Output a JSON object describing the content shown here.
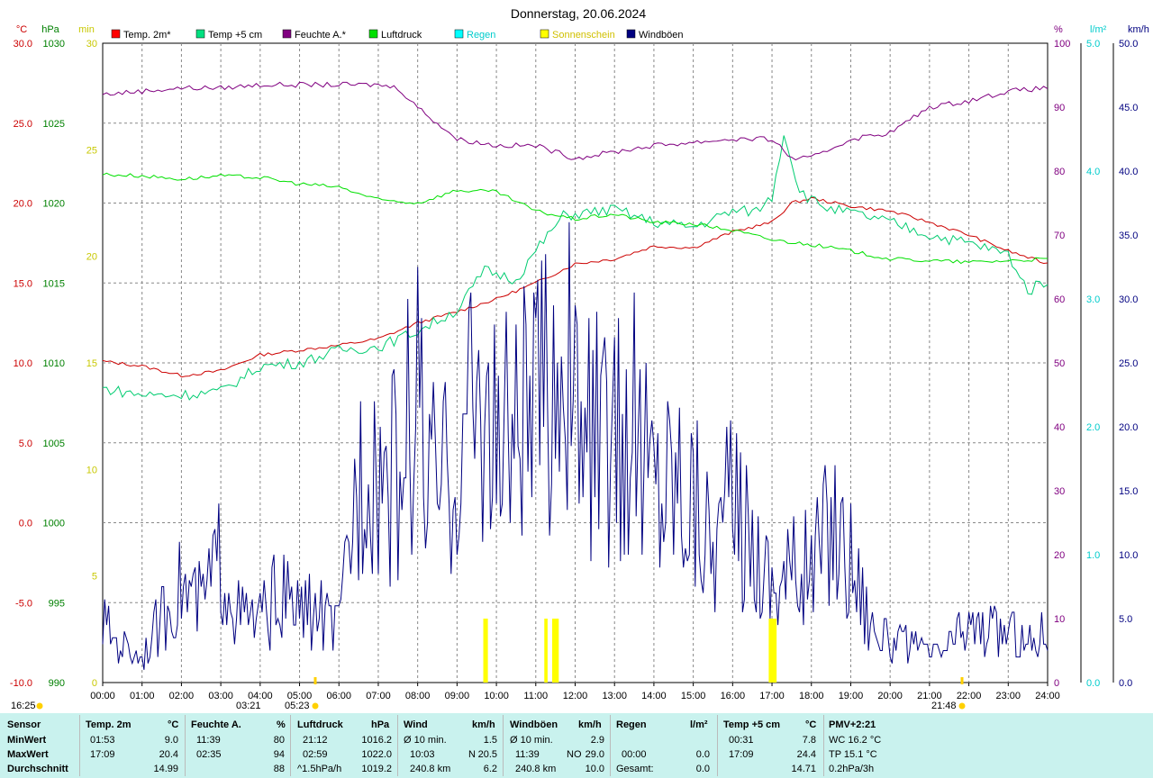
{
  "title": "Donnerstag, 20.06.2024",
  "chart_data": {
    "type": "line",
    "axes": {
      "temp": {
        "unit": "°C",
        "color": "#cc0000",
        "range": [
          -10,
          30
        ],
        "ticks": [
          "30.0",
          "25.0",
          "20.0",
          "15.0",
          "10.0",
          "5.0",
          "0.0",
          "-5.0",
          "-10.0"
        ]
      },
      "pressure": {
        "unit": "hPa",
        "color": "#008000",
        "range": [
          990,
          1030
        ],
        "ticks": [
          "1030",
          "1025",
          "1020",
          "1015",
          "1010",
          "1005",
          "1000",
          "995",
          "990"
        ]
      },
      "sunshine": {
        "unit": "min",
        "color": "#e0e000",
        "range": [
          0,
          30
        ],
        "ticks": [
          "30",
          "25",
          "20",
          "15",
          "10",
          "5",
          "0"
        ]
      },
      "humidity": {
        "unit": "%",
        "color": "#800080",
        "range": [
          0,
          100
        ],
        "ticks": [
          "100",
          "90",
          "80",
          "70",
          "60",
          "50",
          "40",
          "30",
          "20",
          "10",
          "0"
        ]
      },
      "rain": {
        "unit": "l/m²",
        "color": "#00e0e0",
        "range": [
          0,
          5
        ],
        "ticks": [
          "5.0",
          "4.0",
          "3.0",
          "2.0",
          "1.0",
          "0.0"
        ]
      },
      "wind": {
        "unit": "km/h",
        "color": "#000080",
        "range": [
          0,
          50
        ],
        "ticks": [
          "50.0",
          "45.0",
          "40.0",
          "35.0",
          "30.0",
          "25.0",
          "20.0",
          "15.0",
          "10.0",
          "5.0",
          "0.0"
        ]
      }
    },
    "x_ticks": [
      "00:00",
      "01:00",
      "02:00",
      "03:00",
      "04:00",
      "05:00",
      "06:00",
      "07:00",
      "08:00",
      "09:00",
      "10:00",
      "11:00",
      "12:00",
      "13:00",
      "14:00",
      "15:00",
      "16:00",
      "17:00",
      "18:00",
      "19:00",
      "20:00",
      "21:00",
      "22:00",
      "23:00",
      "24:00"
    ],
    "legend": [
      {
        "label": "Temp. 2m*",
        "color": "#ff0000"
      },
      {
        "label": "Temp +5 cm",
        "color": "#00e080"
      },
      {
        "label": "Feuchte A.*",
        "color": "#800080"
      },
      {
        "label": "Luftdruck",
        "color": "#00e000"
      },
      {
        "label": "Regen",
        "color": "#00ffff"
      },
      {
        "label": "Sonnenschein",
        "color": "#ffff00"
      },
      {
        "label": "Windböen",
        "color": "#000080"
      }
    ],
    "series": [
      {
        "name": "Temp. 2m*",
        "axis": "temp",
        "color": "#cc0000",
        "x": [
          0,
          1,
          2,
          3,
          4,
          5,
          6,
          7,
          8,
          9,
          10,
          11,
          12,
          13,
          14,
          15,
          16,
          17,
          17.5,
          18,
          19,
          20,
          21,
          22,
          23,
          24
        ],
        "values": [
          10.1,
          9.8,
          9.2,
          9.5,
          10.5,
          10.8,
          11.1,
          11.5,
          12.5,
          13.2,
          14.0,
          15.0,
          16.2,
          16.5,
          17.3,
          17.2,
          18.2,
          18.8,
          20.0,
          20.3,
          19.8,
          19.5,
          18.8,
          18.0,
          17.0,
          16.2
        ]
      },
      {
        "name": "Temp +5 cm",
        "axis": "temp",
        "color": "#00cc70",
        "x": [
          0,
          0.5,
          1,
          2,
          3,
          4,
          5,
          6,
          7,
          8,
          9,
          9.7,
          10.5,
          11,
          11.7,
          12.3,
          13,
          14,
          15,
          16,
          16.6,
          17,
          17.3,
          17.7,
          18,
          18.5,
          19,
          20,
          21,
          22,
          23,
          23.5,
          24
        ],
        "values": [
          8.4,
          8.2,
          8.0,
          8.0,
          8.2,
          9.8,
          10.0,
          10.8,
          11.0,
          12.0,
          13.3,
          15.8,
          15.2,
          17.0,
          19.2,
          19.4,
          19.6,
          18.8,
          18.5,
          19.5,
          19.5,
          20.4,
          24.4,
          20.8,
          20.2,
          19.6,
          19.4,
          18.8,
          18.0,
          17.5,
          16.8,
          14.5,
          15.2
        ]
      },
      {
        "name": "Feuchte A.*",
        "axis": "humidity",
        "color": "#800080",
        "x": [
          0,
          1,
          2,
          3,
          4,
          5,
          6,
          7,
          7.5,
          8,
          9,
          10,
          11,
          12,
          12.5,
          13,
          14,
          15,
          16,
          17,
          17.5,
          18,
          19,
          20,
          21,
          22,
          23,
          24
        ],
        "values": [
          92,
          92.5,
          93,
          93,
          93.5,
          93.5,
          93.5,
          93.5,
          93,
          90,
          85,
          84,
          84,
          82,
          82.5,
          83,
          84,
          84.5,
          85,
          85,
          82,
          82,
          85,
          86,
          90,
          91,
          92.5,
          93
        ]
      },
      {
        "name": "Luftdruck",
        "axis": "pressure",
        "color": "#00e000",
        "x": [
          0,
          1,
          2,
          3,
          4,
          5,
          6,
          7,
          8,
          9,
          10,
          11,
          12,
          13,
          14,
          15,
          16,
          17,
          18,
          19,
          20,
          21,
          22,
          23,
          24
        ],
        "values": [
          1021.8,
          1021.7,
          1021.5,
          1021.7,
          1021.6,
          1021.2,
          1021.0,
          1020.2,
          1020.0,
          1020.8,
          1020.7,
          1019.5,
          1019.0,
          1019.3,
          1018.8,
          1018.7,
          1018.3,
          1017.7,
          1017.4,
          1017.0,
          1016.5,
          1016.4,
          1016.3,
          1016.4,
          1016.5
        ]
      },
      {
        "name": "Windböen",
        "axis": "wind",
        "color": "#000080",
        "x": [
          0,
          0.5,
          1,
          1.5,
          2,
          2.5,
          3,
          3.5,
          4,
          4.5,
          5,
          5.5,
          6,
          6.3,
          6.7,
          7,
          7.5,
          8,
          8.2,
          8.5,
          9,
          9.3,
          9.7,
          10,
          10.5,
          11,
          11.5,
          11.7,
          12,
          12.5,
          13,
          13.5,
          14,
          14.5,
          15,
          15.5,
          16,
          16.5,
          17,
          17.5,
          18,
          18.5,
          19,
          19.5,
          20,
          20.5,
          21,
          21.5,
          22,
          22.5,
          23,
          23.5,
          24
        ],
        "values": [
          4.5,
          3,
          2,
          5,
          7.5,
          6,
          10,
          5,
          5,
          7,
          5.5,
          5.5,
          4,
          12,
          20,
          17,
          16,
          23,
          16,
          15,
          17,
          21,
          22,
          18,
          20,
          21,
          24,
          28,
          20,
          19,
          18,
          20,
          16,
          17,
          15,
          11,
          14,
          11,
          8,
          9,
          9,
          13,
          10,
          5,
          3,
          3,
          2,
          3,
          4.5,
          4,
          4,
          3,
          4.5
        ]
      }
    ],
    "sunshine_bars": [
      {
        "start": "09:40",
        "end": "09:47",
        "minutes": 3
      },
      {
        "start": "11:13",
        "end": "11:18",
        "minutes": 3
      },
      {
        "start": "11:25",
        "end": "11:35",
        "minutes": 3
      },
      {
        "start": "16:55",
        "end": "17:07",
        "minutes": 3
      }
    ],
    "markers": {
      "sunrise_left": "16:25",
      "m1": "03:21",
      "m2": "05:23",
      "m3": "21:48"
    }
  },
  "footer": {
    "sensor": {
      "header": "Sensor",
      "rows": [
        "MinWert",
        "MaxWert",
        "Durchschnitt"
      ]
    },
    "temp2m": {
      "header": "Temp. 2m",
      "unit": "°C",
      "min_time": "01:53",
      "min": "9.0",
      "max_time": "17:09",
      "max": "20.4",
      "avg": "14.99"
    },
    "feuchte": {
      "header": "Feuchte A.",
      "unit": "%",
      "min_time": "11:39",
      "min": "80",
      "max_time": "02:35",
      "max": "94",
      "avg": "88"
    },
    "luftdruck": {
      "header": "Luftdruck",
      "unit": "hPa",
      "min_time": "21:12",
      "min": "1016.2",
      "max_time": "02:59",
      "max": "1022.0",
      "avg_label": "^1.5hPa/h",
      "avg": "1019.2"
    },
    "wind": {
      "header": "Wind",
      "unit": "km/h",
      "min_label": "Ø 10 min.",
      "min": "1.5",
      "max_time": "10:03",
      "max_dir": "N",
      "max": "20.5",
      "avg_label": "240.8 km",
      "avg": "6.2"
    },
    "windboen": {
      "header": "Windböen",
      "unit": "km/h",
      "min_label": "Ø 10 min.",
      "min": "2.9",
      "max_time": "11:39",
      "max_dir": "NO",
      "max": "29.0",
      "avg_label": "240.8 km",
      "avg": "10.0"
    },
    "regen": {
      "header": "Regen",
      "unit": "l/m²",
      "max_time": "00:00",
      "max": "0.0",
      "avg_label": "Gesamt:",
      "avg": "0.0"
    },
    "temp5": {
      "header": "Temp +5 cm",
      "unit": "°C",
      "min_time": "00:31",
      "min": "7.8",
      "max_time": "17:09",
      "max": "24.4",
      "avg": "14.71"
    },
    "pmv": {
      "header": "PMV+2:21",
      "l1": "WC 16.2 °C",
      "l2": "TP 15.1 °C",
      "l3": "0.2hPa/3h"
    }
  }
}
